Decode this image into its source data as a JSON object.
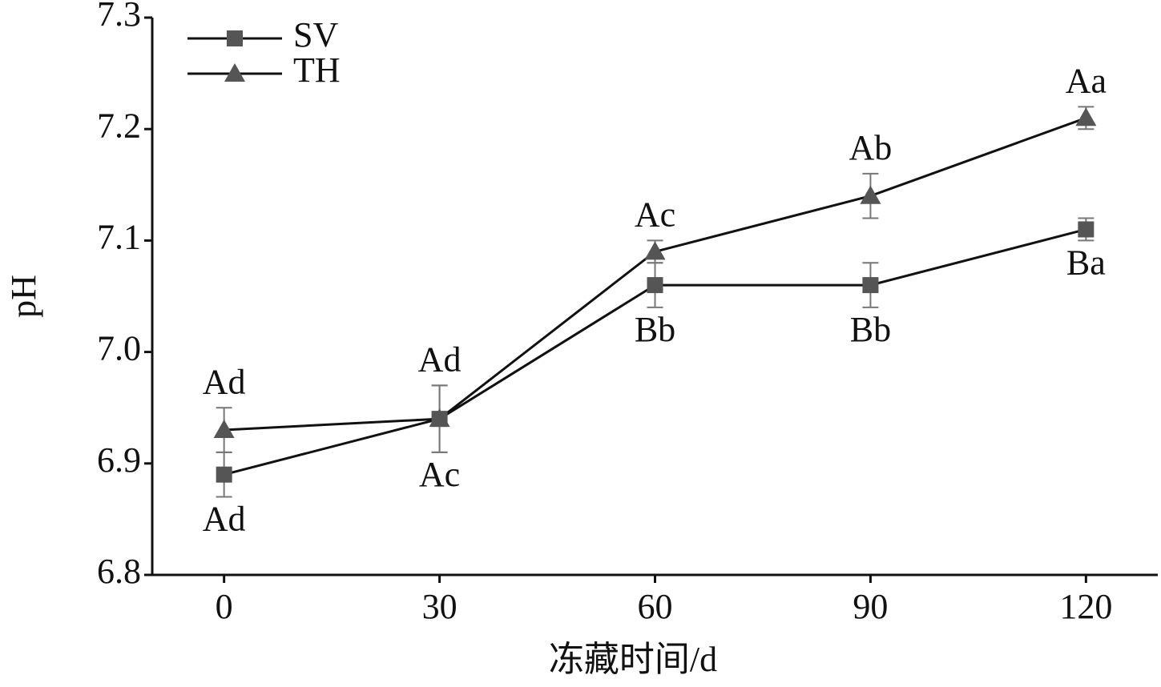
{
  "chart_data": {
    "type": "line",
    "x_label": "冻藏时间/d",
    "y_label": "pH",
    "x": [
      0,
      30,
      60,
      90,
      120
    ],
    "xlim": [
      -10,
      130
    ],
    "xticks": [
      0,
      30,
      60,
      90,
      120
    ],
    "ylim": [
      6.8,
      7.3
    ],
    "yticks": [
      {
        "value": 6.8,
        "label": "6.8"
      },
      {
        "value": 6.9,
        "label": "6.9"
      },
      {
        "value": 7.0,
        "label": "7.0"
      },
      {
        "value": 7.1,
        "label": "7.1"
      },
      {
        "value": 7.2,
        "label": "7.2"
      },
      {
        "value": 7.3,
        "label": "7.3"
      }
    ],
    "legend": "upper left",
    "series": [
      {
        "name": "SV",
        "marker": "square",
        "color": "#555555",
        "line_color": "#111111",
        "values": [
          6.89,
          6.94,
          7.06,
          7.06,
          7.11
        ],
        "errors": [
          0.02,
          0.03,
          0.02,
          0.02,
          0.01
        ],
        "labels": [
          "Ad",
          "Ac",
          "Bb",
          "Bb",
          "Ba"
        ],
        "label_position": "below"
      },
      {
        "name": "TH",
        "marker": "triangle",
        "color": "#555555",
        "line_color": "#111111",
        "values": [
          6.93,
          6.94,
          7.09,
          7.14,
          7.21
        ],
        "errors": [
          0.02,
          0.03,
          0.01,
          0.02,
          0.01
        ],
        "labels": [
          "Ad",
          "Ad",
          "Ac",
          "Ab",
          "Aa"
        ],
        "label_position": "above"
      }
    ]
  }
}
